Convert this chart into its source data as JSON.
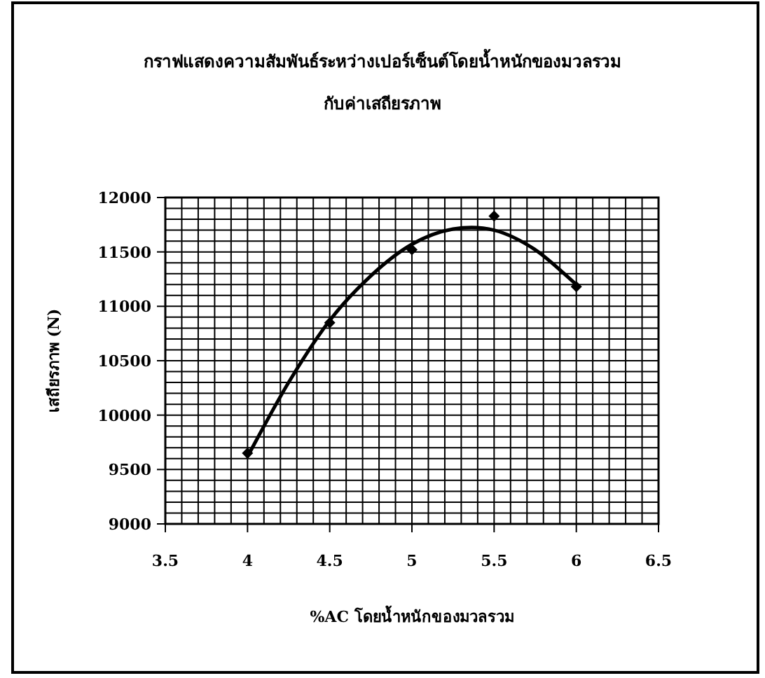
{
  "chart_data": {
    "type": "scatter",
    "title": "กราฟแสดงความสัมพันธ์ระหว่างเปอร์เซ็นต์โดยน้ำหนักของมวลรวม",
    "subtitle": "กับค่าเสถียรภาพ",
    "xlabel": "%AC โดยน้ำหนักของมวลรวม",
    "ylabel": "เสถียรภาพ (N)",
    "xlim": [
      3.5,
      6.5
    ],
    "ylim": [
      9000,
      12000
    ],
    "xticks": [
      3.5,
      4,
      4.5,
      5,
      5.5,
      6,
      6.5
    ],
    "yticks": [
      9000,
      9500,
      10000,
      10500,
      11000,
      11500,
      12000
    ],
    "grid": true,
    "series": [
      {
        "type": "scatter",
        "marker": "diamond",
        "color": "#000000",
        "x": [
          4,
          4.5,
          5,
          5.5,
          6
        ],
        "values": [
          9650,
          10850,
          11520,
          11830,
          11180
        ]
      },
      {
        "type": "line",
        "marker": "none",
        "color": "#000000",
        "x": [
          4,
          4.25,
          4.5,
          4.75,
          5,
          5.25,
          5.5,
          5.75,
          6
        ],
        "values": [
          9620,
          10300,
          10870,
          11280,
          11570,
          11710,
          11700,
          11520,
          11200
        ]
      }
    ]
  }
}
